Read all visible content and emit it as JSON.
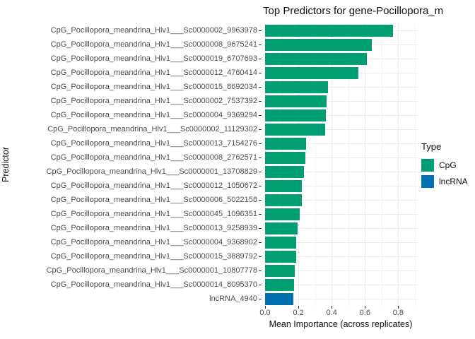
{
  "title": "Top Predictors for gene-Pocillopora_m",
  "colors": {
    "cpg": "#009E73",
    "lncrna": "#0072B2",
    "grid_major": "#ececec",
    "grid_minor": "#f3f3f3",
    "tick_text": "#4d4d4d",
    "axis_text": "#111111"
  },
  "chart_data": {
    "type": "bar",
    "orientation": "horizontal",
    "title": "Top Predictors for gene-Pocillopora_m",
    "xlabel": "Mean Importance (across replicates)",
    "ylabel": "Predictor",
    "xlim": [
      0,
      0.9
    ],
    "xticks": [
      0.0,
      0.2,
      0.4,
      0.6,
      0.8
    ],
    "grid": true,
    "legend": {
      "title": "Type",
      "position": "right",
      "entries": [
        {
          "label": "CpG",
          "color": "#009E73"
        },
        {
          "label": "lncRNA",
          "color": "#0072B2"
        }
      ]
    },
    "bars": [
      {
        "label": "CpG_Pocillopora_meandrina_Hlv1___Sc0000002_9963978",
        "value": 0.77,
        "type": "CpG"
      },
      {
        "label": "CpG_Pocillopora_meandrina_Hlv1___Sc0000008_9675241",
        "value": 0.64,
        "type": "CpG"
      },
      {
        "label": "CpG_Pocillopora_meandrina_Hlv1___Sc0000019_6707693",
        "value": 0.61,
        "type": "CpG"
      },
      {
        "label": "CpG_Pocillopora_meandrina_Hlv1___Sc0000012_4760414",
        "value": 0.56,
        "type": "CpG"
      },
      {
        "label": "CpG_Pocillopora_meandrina_Hlv1___Sc0000015_8692034",
        "value": 0.38,
        "type": "CpG"
      },
      {
        "label": "CpG_Pocillopora_meandrina_Hlv1___Sc0000002_7537392",
        "value": 0.37,
        "type": "CpG"
      },
      {
        "label": "CpG_Pocillopora_meandrina_Hlv1___Sc0000004_9369294",
        "value": 0.365,
        "type": "CpG"
      },
      {
        "label": "CpG_Pocillopora_meandrina_Hlv1___Sc0000002_11129302",
        "value": 0.36,
        "type": "CpG"
      },
      {
        "label": "CpG_Pocillopora_meandrina_Hlv1___Sc0000013_7154276",
        "value": 0.245,
        "type": "CpG"
      },
      {
        "label": "CpG_Pocillopora_meandrina_Hlv1___Sc0000008_2762571",
        "value": 0.24,
        "type": "CpG"
      },
      {
        "label": "CpG_Pocillopora_meandrina_Hlv1___Sc0000001_13708829",
        "value": 0.235,
        "type": "CpG"
      },
      {
        "label": "CpG_Pocillopora_meandrina_Hlv1___Sc0000012_1050672",
        "value": 0.22,
        "type": "CpG"
      },
      {
        "label": "CpG_Pocillopora_meandrina_Hlv1___Sc0000006_5022158",
        "value": 0.22,
        "type": "CpG"
      },
      {
        "label": "CpG_Pocillopora_meandrina_Hlv1___Sc0000045_1096351",
        "value": 0.21,
        "type": "CpG"
      },
      {
        "label": "CpG_Pocillopora_meandrina_Hlv1___Sc0000013_9258939",
        "value": 0.195,
        "type": "CpG"
      },
      {
        "label": "CpG_Pocillopora_meandrina_Hlv1___Sc0000004_9368902",
        "value": 0.185,
        "type": "CpG"
      },
      {
        "label": "CpG_Pocillopora_meandrina_Hlv1___Sc0000015_3889792",
        "value": 0.185,
        "type": "CpG"
      },
      {
        "label": "CpG_Pocillopora_meandrina_Hlv1___Sc0000001_10807778",
        "value": 0.18,
        "type": "CpG"
      },
      {
        "label": "CpG_Pocillopora_meandrina_Hlv1___Sc0000014_8095370",
        "value": 0.175,
        "type": "CpG"
      },
      {
        "label": "lncRNA_4940",
        "value": 0.17,
        "type": "lncRNA"
      }
    ]
  }
}
